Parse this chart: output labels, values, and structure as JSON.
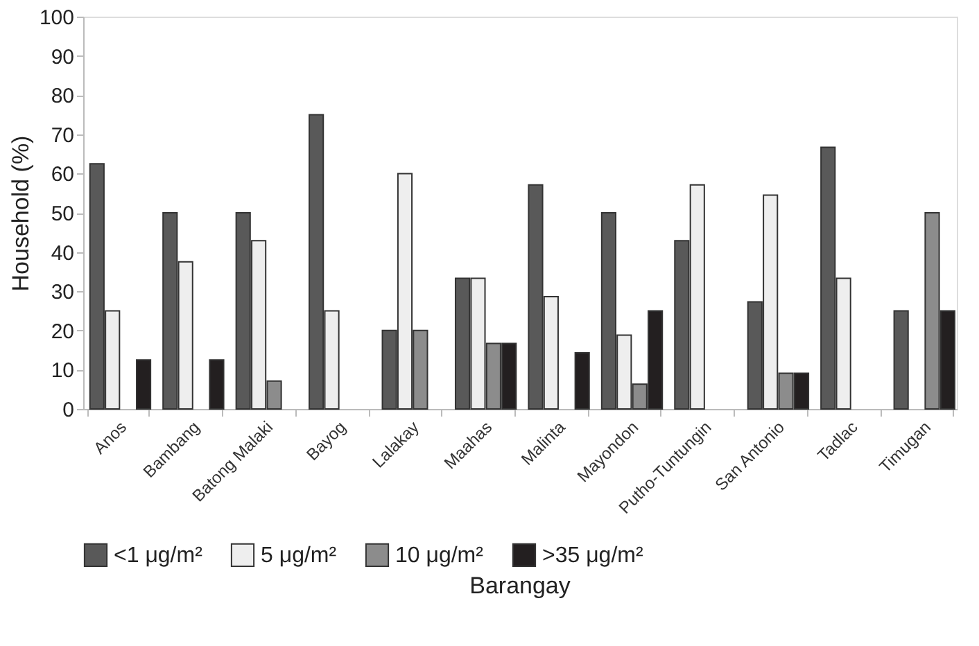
{
  "chart_data": {
    "type": "bar",
    "xlabel": "Barangay",
    "ylabel": "Household (%)",
    "categories": [
      "Anos",
      "Bambang",
      "Batong Malaki",
      "Bayog",
      "Lalakay",
      "Maahas",
      "Malinta",
      "Mayondon",
      "Putho-Tuntungin",
      "San Antonio",
      "Tadlac",
      "Timugan"
    ],
    "series": [
      {
        "name": "<1 μg/m²",
        "color": "#595959",
        "values": [
          62.5,
          50,
          50,
          75,
          20,
          33.3,
          57.1,
          50,
          42.9,
          27.3,
          66.7,
          25
        ]
      },
      {
        "name": "5 μg/m²",
        "color": "#eeeeee",
        "values": [
          25,
          37.5,
          42.9,
          25,
          60,
          33.3,
          28.6,
          18.8,
          57.1,
          54.5,
          33.3,
          null
        ]
      },
      {
        "name": "10 μg/m²",
        "color": "#8c8c8c",
        "values": [
          null,
          null,
          7.1,
          null,
          20,
          16.7,
          null,
          6.3,
          null,
          9.1,
          null,
          50
        ]
      },
      {
        "name": ">35 μg/m²",
        "color": "#231f20",
        "values": [
          12.5,
          12.5,
          null,
          null,
          null,
          16.7,
          14.3,
          25,
          null,
          9.1,
          null,
          25
        ]
      }
    ],
    "ylim": [
      0,
      100
    ],
    "yticks": [
      0,
      10,
      20,
      30,
      40,
      50,
      60,
      70,
      80,
      90,
      100
    ],
    "grid": false,
    "legend": "bottom"
  }
}
